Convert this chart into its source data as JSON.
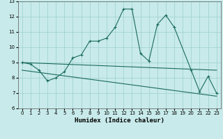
{
  "xlabel": "Humidex (Indice chaleur)",
  "xlim": [
    -0.5,
    23.5
  ],
  "ylim": [
    6,
    13
  ],
  "yticks": [
    6,
    7,
    8,
    9,
    10,
    11,
    12,
    13
  ],
  "xticks": [
    0,
    1,
    2,
    3,
    4,
    5,
    6,
    7,
    8,
    9,
    10,
    11,
    12,
    13,
    14,
    15,
    16,
    17,
    18,
    19,
    20,
    21,
    22,
    23
  ],
  "background_color": "#c8eaea",
  "grid_color": "#9ecece",
  "line_color": "#1a6b5a",
  "main_series": {
    "x": [
      0,
      1,
      2,
      3,
      4,
      5,
      6,
      7,
      8,
      9,
      10,
      11,
      12,
      13,
      14,
      15,
      16,
      17,
      18,
      20,
      21,
      22,
      23
    ],
    "y": [
      9.0,
      8.9,
      8.5,
      7.8,
      8.0,
      8.4,
      9.3,
      9.5,
      10.4,
      10.4,
      10.6,
      11.3,
      12.5,
      12.5,
      9.6,
      9.1,
      11.5,
      12.1,
      11.3,
      8.5,
      7.1,
      8.1,
      7.0
    ]
  },
  "diag1": {
    "x": [
      0,
      23
    ],
    "y": [
      9.0,
      8.5
    ]
  },
  "diag2": {
    "x": [
      0,
      23
    ],
    "y": [
      8.5,
      6.8
    ]
  }
}
